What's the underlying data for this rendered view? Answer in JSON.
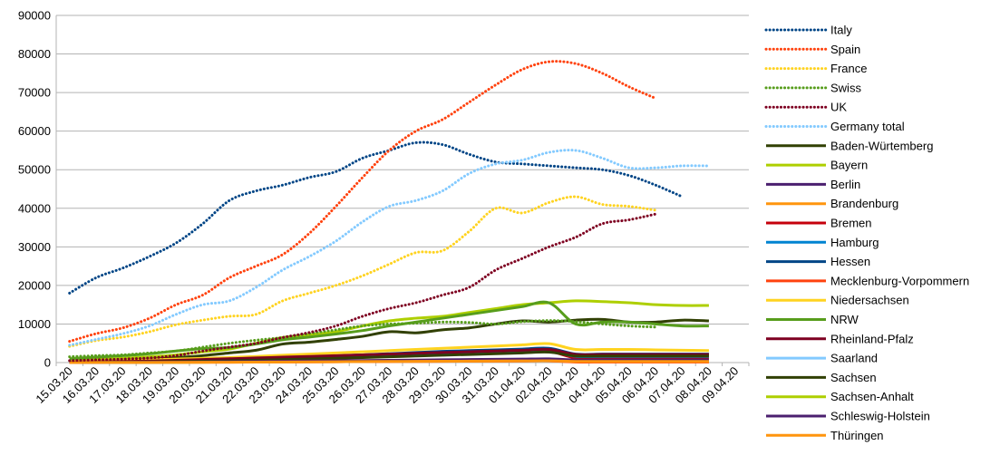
{
  "chart_data": {
    "type": "line",
    "ylim": [
      0,
      90000
    ],
    "y_ticks": [
      "0",
      "10000",
      "20000",
      "30000",
      "40000",
      "50000",
      "60000",
      "70000",
      "80000",
      "90000"
    ],
    "categories": [
      "15.03.20",
      "16.03.20",
      "17.03.20",
      "18.03.20",
      "19.03.20",
      "20.03.20",
      "21.03.20",
      "22.03.20",
      "23.03.20",
      "24.03.20",
      "25.03.20",
      "26.03.20",
      "27.03.20",
      "28.03.20",
      "29.03.20",
      "30.03.20",
      "31.03.20",
      "01.04.20",
      "02.04.20",
      "03.04.20",
      "04.04.20",
      "05.04.20",
      "06.04.20",
      "07.04.20",
      "08.04.20",
      "09.04.20"
    ],
    "grid": "horizontal",
    "legend_position": "right",
    "series": [
      {
        "name": "Italy",
        "color": "#004586",
        "style": "dotted",
        "values": [
          18000,
          22000,
          24500,
          27500,
          31000,
          36000,
          42000,
          44500,
          46000,
          48000,
          49500,
          53000,
          55000,
          57000,
          56500,
          54000,
          52000,
          51500,
          51000,
          50500,
          50000,
          48500,
          46000,
          43000,
          null,
          null
        ]
      },
      {
        "name": "Spain",
        "color": "#ff420e",
        "style": "dotted",
        "values": [
          5500,
          7500,
          9000,
          11500,
          15000,
          17500,
          22000,
          25000,
          28000,
          33500,
          40500,
          48000,
          55000,
          60000,
          63000,
          67500,
          72000,
          76000,
          78000,
          77500,
          75000,
          71500,
          68500,
          null,
          null,
          null
        ]
      },
      {
        "name": "France",
        "color": "#ffd320",
        "style": "dotted",
        "values": [
          4200,
          5700,
          6600,
          8000,
          9800,
          11000,
          12000,
          12500,
          16000,
          18000,
          20000,
          22500,
          25500,
          28500,
          29000,
          34000,
          40000,
          38800,
          41500,
          43000,
          41000,
          40500,
          39500,
          null,
          null,
          null
        ]
      },
      {
        "name": "Swiss",
        "color": "#579d1c",
        "style": "dotted",
        "values": [
          1500,
          1800,
          2000,
          2500,
          3000,
          4000,
          5000,
          5800,
          6500,
          7500,
          8500,
          9500,
          10000,
          10200,
          10500,
          10400,
          10000,
          10600,
          10900,
          10600,
          10000,
          9500,
          9200,
          null,
          null,
          null
        ]
      },
      {
        "name": "UK",
        "color": "#7e0021",
        "style": "dotted",
        "values": [
          500,
          700,
          900,
          1200,
          1800,
          3000,
          4000,
          5000,
          6500,
          7800,
          9500,
          12000,
          14000,
          15500,
          17500,
          19500,
          24000,
          27000,
          30000,
          32500,
          36000,
          37000,
          38500,
          null,
          null,
          null
        ]
      },
      {
        "name": "Germany total",
        "color": "#83caff",
        "style": "dotted",
        "values": [
          4500,
          6000,
          7500,
          9500,
          12500,
          15000,
          16000,
          19500,
          24000,
          27500,
          31500,
          36500,
          40500,
          42000,
          44500,
          49000,
          51500,
          52500,
          54500,
          55000,
          53000,
          50500,
          50500,
          51000,
          51000,
          null
        ]
      },
      {
        "name": "Baden-Würtemberg",
        "color": "#314004",
        "style": "solid",
        "values": [
          300,
          400,
          600,
          900,
          1300,
          1800,
          2500,
          3200,
          4800,
          5300,
          6000,
          6800,
          8000,
          7700,
          8500,
          9000,
          10000,
          10800,
          10500,
          11000,
          11200,
          10500,
          10500,
          11000,
          10800,
          null
        ]
      },
      {
        "name": "Bayern",
        "color": "#aecf00",
        "style": "solid",
        "values": [
          500,
          800,
          1100,
          1500,
          2000,
          2800,
          3500,
          5000,
          6500,
          7200,
          8000,
          9500,
          10800,
          11500,
          12000,
          13000,
          14000,
          15000,
          15500,
          16000,
          15800,
          15500,
          15000,
          14800,
          14800,
          null
        ]
      },
      {
        "name": "Berlin",
        "color": "#4b1f6f",
        "style": "solid",
        "values": [
          50,
          100,
          150,
          250,
          350,
          500,
          650,
          850,
          1050,
          1250,
          1450,
          1700,
          1950,
          2150,
          2350,
          2550,
          2800,
          3100,
          3400,
          2000,
          2000,
          2000,
          2000,
          2000,
          2000,
          null
        ]
      },
      {
        "name": "Brandenburg",
        "color": "#ff950e",
        "style": "solid",
        "values": [
          20,
          30,
          40,
          60,
          80,
          100,
          140,
          180,
          230,
          280,
          330,
          380,
          430,
          470,
          500,
          520,
          540,
          560,
          600,
          180,
          180,
          180,
          180,
          180,
          180,
          null
        ]
      },
      {
        "name": "Bremen",
        "color": "#c5000b",
        "style": "solid",
        "values": [
          20,
          50,
          100,
          200,
          400,
          600,
          800,
          1000,
          1200,
          1400,
          1600,
          1800,
          2000,
          2200,
          2300,
          2400,
          2500,
          2700,
          2900,
          1200,
          1200,
          1200,
          1200,
          1200,
          1200,
          null
        ]
      },
      {
        "name": "Hamburg",
        "color": "#0084d1",
        "style": "solid",
        "values": [
          30,
          50,
          80,
          150,
          250,
          400,
          550,
          700,
          900,
          1100,
          1300,
          1500,
          1700,
          1900,
          2100,
          2300,
          2500,
          2700,
          2900,
          1600,
          1600,
          1600,
          1600,
          1600,
          1600,
          null
        ]
      },
      {
        "name": "Hessen",
        "color": "#004586",
        "style": "solid",
        "values": [
          50,
          100,
          200,
          300,
          400,
          600,
          800,
          1000,
          1200,
          1400,
          1700,
          2000,
          2300,
          2600,
          2900,
          3100,
          3300,
          3500,
          3700,
          2200,
          2200,
          2200,
          2200,
          2200,
          2200,
          null
        ]
      },
      {
        "name": "Mecklenburg-Vorpommern",
        "color": "#ff420e",
        "style": "solid",
        "values": [
          10,
          20,
          30,
          40,
          60,
          80,
          100,
          120,
          150,
          180,
          210,
          240,
          270,
          300,
          330,
          360,
          390,
          420,
          450,
          150,
          150,
          150,
          150,
          150,
          150,
          null
        ]
      },
      {
        "name": "Niedersachsen",
        "color": "#ffd320",
        "style": "solid",
        "values": [
          300,
          400,
          500,
          700,
          900,
          1100,
          1300,
          1600,
          1900,
          2200,
          2500,
          2800,
          3100,
          3400,
          3700,
          4000,
          4300,
          4600,
          4900,
          3400,
          3400,
          3400,
          3300,
          3200,
          3100,
          null
        ]
      },
      {
        "name": "NRW",
        "color": "#579d1c",
        "style": "solid",
        "values": [
          1000,
          1400,
          1800,
          2300,
          3000,
          3600,
          3900,
          4800,
          5900,
          6600,
          7400,
          8300,
          9500,
          10500,
          11500,
          12500,
          13500,
          14500,
          15500,
          10000,
          10500,
          10500,
          10000,
          9500,
          9500,
          null
        ]
      },
      {
        "name": "Rheinland-Pfalz",
        "color": "#7e0021",
        "style": "solid",
        "values": [
          100,
          200,
          300,
          400,
          600,
          800,
          1000,
          1200,
          1400,
          1600,
          1800,
          2000,
          2200,
          2400,
          2600,
          2800,
          3000,
          3200,
          3400,
          2100,
          2100,
          2100,
          2100,
          2100,
          2100,
          null
        ]
      },
      {
        "name": "Saarland",
        "color": "#83caff",
        "style": "solid",
        "values": [
          10,
          20,
          40,
          60,
          100,
          150,
          200,
          250,
          300,
          350,
          400,
          450,
          500,
          550,
          600,
          650,
          700,
          750,
          800,
          500,
          500,
          500,
          500,
          500,
          500,
          null
        ]
      },
      {
        "name": "Sachsen",
        "color": "#314004",
        "style": "solid",
        "values": [
          50,
          80,
          120,
          180,
          260,
          360,
          480,
          620,
          780,
          950,
          1100,
          1300,
          1500,
          1700,
          1900,
          2100,
          2300,
          2500,
          2700,
          1700,
          1700,
          1700,
          1700,
          1700,
          1700,
          null
        ]
      },
      {
        "name": "Sachsen-Anhalt",
        "color": "#aecf00",
        "style": "solid",
        "values": [
          10,
          20,
          30,
          50,
          70,
          100,
          130,
          170,
          210,
          250,
          290,
          330,
          370,
          410,
          450,
          490,
          530,
          570,
          610,
          500,
          500,
          500,
          500,
          500,
          500,
          null
        ]
      },
      {
        "name": "Schleswig-Holstein",
        "color": "#4b1f6f",
        "style": "solid",
        "values": [
          20,
          40,
          60,
          90,
          130,
          180,
          240,
          300,
          360,
          420,
          480,
          540,
          600,
          660,
          720,
          780,
          840,
          900,
          960,
          700,
          700,
          700,
          700,
          700,
          700,
          null
        ]
      },
      {
        "name": "Thüringen",
        "color": "#ff950e",
        "style": "solid",
        "values": [
          10,
          20,
          30,
          40,
          60,
          80,
          100,
          130,
          160,
          190,
          220,
          250,
          280,
          310,
          340,
          370,
          400,
          430,
          460,
          300,
          300,
          300,
          300,
          300,
          300,
          null
        ]
      }
    ]
  }
}
